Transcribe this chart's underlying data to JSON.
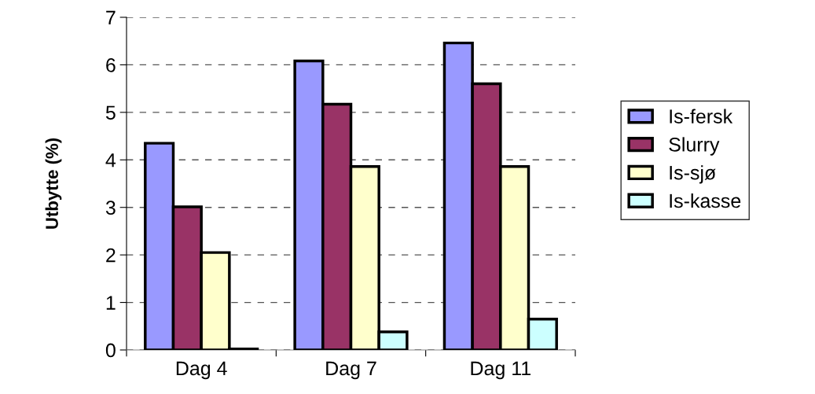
{
  "chart_data": {
    "type": "bar",
    "ylabel": "Utbytte (%)",
    "categories": [
      "Dag 4",
      "Dag 7",
      "Dag 11"
    ],
    "series": [
      {
        "name": "Is-fersk",
        "color": "#9999ff",
        "values": [
          4.35,
          6.08,
          6.46
        ]
      },
      {
        "name": "Slurry",
        "color": "#993366",
        "values": [
          3.01,
          5.17,
          5.6
        ]
      },
      {
        "name": "Is-sjø",
        "color": "#ffffcc",
        "values": [
          2.05,
          3.86,
          3.86
        ]
      },
      {
        "name": "Is-kasse",
        "color": "#ccffff",
        "values": [
          0.02,
          0.38,
          0.65
        ]
      }
    ],
    "ylim": [
      0,
      7
    ],
    "yticks": [
      0,
      1,
      2,
      3,
      4,
      5,
      6,
      7
    ],
    "grid": "y",
    "legend": "right"
  }
}
